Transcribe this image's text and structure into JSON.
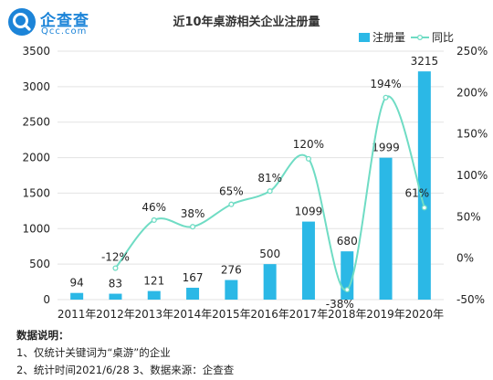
{
  "brand": {
    "name": "企查查",
    "domain": "Qcc.com",
    "color": "#1c84d8"
  },
  "notes": {
    "title": "数据说明：",
    "line1": "1、仅统计关键词为“桌游”的企业",
    "line2": "2、统计时间2021/6/28   3、数据来源：企查查"
  },
  "chart_data": {
    "type": "bar",
    "title": "近10年桌游相关企业注册量",
    "categories": [
      "2011年",
      "2012年",
      "2013年",
      "2014年",
      "2015年",
      "2016年",
      "2017年",
      "2018年",
      "2019年",
      "2020年"
    ],
    "series": [
      {
        "name": "注册量",
        "type": "bar",
        "axis": "left",
        "color": "#2bb8e6",
        "values": [
          94,
          83,
          121,
          167,
          276,
          500,
          1099,
          680,
          1999,
          3215
        ],
        "labels": [
          "94",
          "83",
          "121",
          "167",
          "276",
          "500",
          "1099",
          "680",
          "1999",
          "3215"
        ]
      },
      {
        "name": "同比",
        "type": "line",
        "axis": "right",
        "color": "#6fdcc4",
        "values": [
          null,
          -12,
          46,
          38,
          65,
          81,
          120,
          -38,
          194,
          61
        ],
        "labels": [
          null,
          "-12%",
          "46%",
          "38%",
          "65%",
          "81%",
          "120%",
          "-38%",
          "194%",
          "61%"
        ]
      }
    ],
    "y_left": {
      "range": [
        0,
        3500
      ],
      "ticks": [
        0,
        500,
        1000,
        1500,
        2000,
        2500,
        3000,
        3500
      ],
      "tick_labels": [
        "0",
        "500",
        "1000",
        "1500",
        "2000",
        "2500",
        "3000",
        "3500"
      ]
    },
    "y_right": {
      "range": [
        -50,
        250
      ],
      "ticks": [
        -50,
        0,
        50,
        100,
        150,
        200,
        250
      ],
      "tick_labels": [
        "-50%",
        "0%",
        "50%",
        "100%",
        "150%",
        "200%",
        "250%"
      ]
    },
    "grid": true,
    "legend_position": "top-right"
  }
}
